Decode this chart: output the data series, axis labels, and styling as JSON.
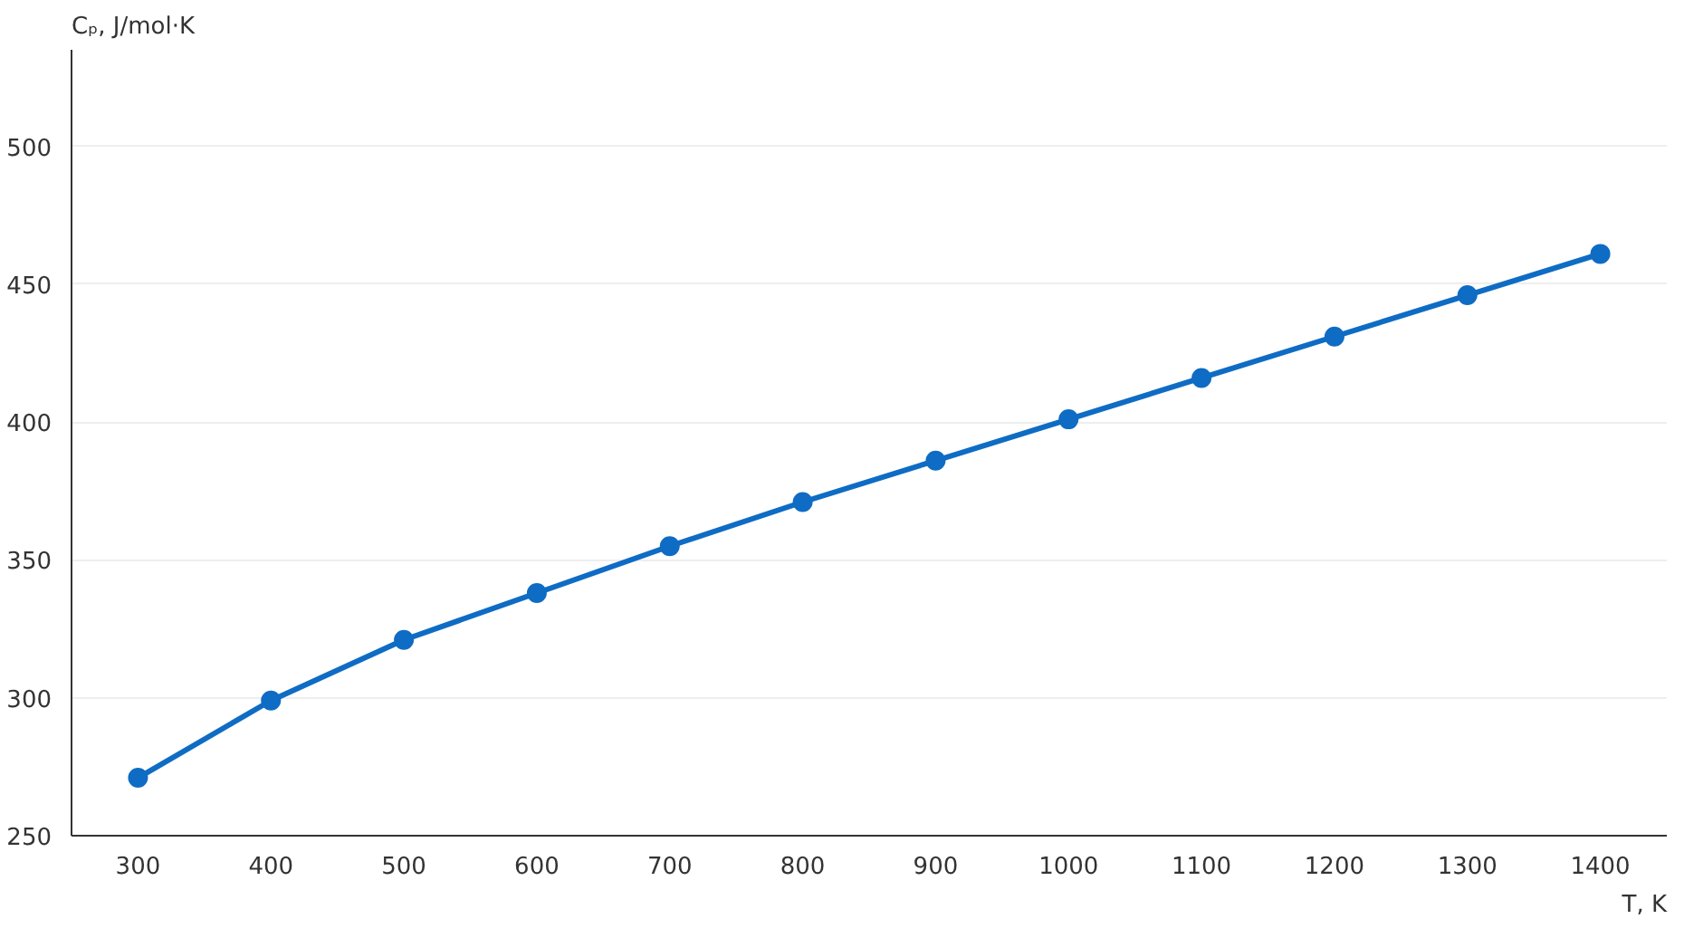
{
  "chart_data": {
    "type": "line",
    "xlabel": "T, K",
    "ylabel": "Cₚ, J/mol·K",
    "x": [
      300,
      400,
      500,
      600,
      700,
      800,
      900,
      1000,
      1100,
      1200,
      1300,
      1400
    ],
    "series": [
      {
        "color": "#0f6cc4",
        "values": [
          271,
          299,
          321,
          338,
          355,
          371,
          386,
          401,
          416,
          431,
          446,
          461
        ]
      }
    ],
    "xlim": [
      250,
      1450
    ],
    "ylim": [
      250,
      535
    ],
    "xticks": [
      300,
      400,
      500,
      600,
      700,
      800,
      900,
      1000,
      1100,
      1200,
      1300,
      1400
    ],
    "yticks": [
      250,
      300,
      350,
      400,
      450,
      500
    ],
    "grid": "y",
    "marker": "circle",
    "line_style": "solid"
  }
}
